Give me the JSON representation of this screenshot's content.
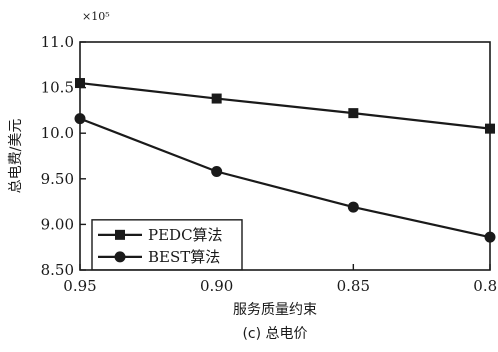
{
  "chart_data": {
    "type": "line",
    "title": "",
    "caption": "(c) 总电价",
    "xlabel": "服务质量约束",
    "ylabel": "总电费/美元",
    "y_scale_label": "×10⁵",
    "x": [
      0.95,
      0.9,
      0.85,
      0.8
    ],
    "x_tick_labels": [
      "0.95",
      "0.90",
      "0.85",
      "0.80"
    ],
    "x_reversed": true,
    "xlim": [
      0.95,
      0.8
    ],
    "ylim": [
      8.5,
      11.0
    ],
    "y_ticks": [
      8.5,
      9.0,
      9.5,
      10.0,
      10.5,
      11.0
    ],
    "y_tick_labels": [
      "8.50",
      "9.00",
      "9.50",
      "10.0",
      "10.5",
      "11.0"
    ],
    "series": [
      {
        "name": "PEDC算法",
        "marker": "square",
        "values": [
          10.55,
          10.38,
          10.22,
          10.05
        ]
      },
      {
        "name": "BEST算法",
        "marker": "circle",
        "values": [
          10.16,
          9.58,
          9.19,
          8.86
        ]
      }
    ],
    "grid": false,
    "legend_position": "bottom-left"
  }
}
